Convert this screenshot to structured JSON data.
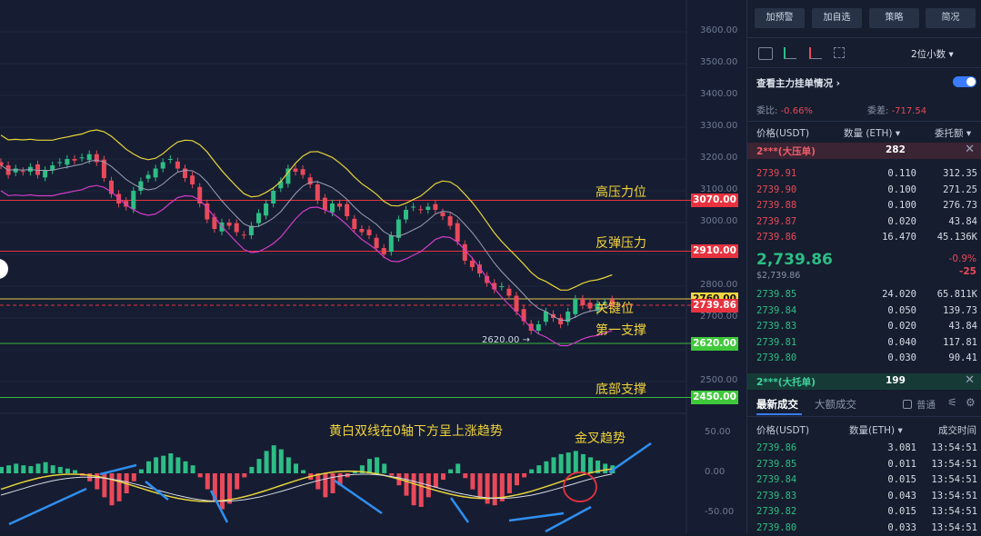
{
  "chart": {
    "price_ticks": [
      "3600.00",
      "3500.00",
      "3400.00",
      "3300.00",
      "3200.00",
      "3100.00",
      "3000.00",
      "2900.00",
      "2800.00",
      "2700.00",
      "2600.00",
      "2500.00"
    ],
    "macd_ticks": [
      "50.00",
      "0.00",
      "-50.00"
    ],
    "levels": [
      {
        "price": "3070.00",
        "label": "高压力位",
        "color": "#e8323f",
        "line": "#e8323f"
      },
      {
        "price": "2910.00",
        "label": "反弹压力",
        "color": "#e8323f",
        "line": "#e8323f"
      },
      {
        "price": "2760.00",
        "label": "关键位",
        "color": "#f0d640",
        "line": "#e4c84a"
      },
      {
        "price": "2739.86",
        "label": "",
        "color": "#e8323f",
        "line": "#e8323f"
      },
      {
        "price": "2620.00",
        "label": "第一支撑",
        "color": "#3fc93a",
        "line": "#39b83c"
      },
      {
        "price": "2450.00",
        "label": "底部支撑",
        "color": "#3fc93a",
        "line": "#39b83c"
      }
    ],
    "low_marker": "2620.00",
    "macd_note": "黄白双线在0轴下方呈上涨趋势",
    "cross_note": "金叉趋势"
  },
  "panel": {
    "buttons": [
      "加预警",
      "加自选",
      "策略",
      "简况"
    ],
    "decimals": "2位小数",
    "main_orders_title": "查看主力挂单情况",
    "ratio_label": "委比:",
    "ratio_value": "-0.66%",
    "diff_label": "委差:",
    "diff_value": "-717.54",
    "book_headers": [
      "价格(USDT)",
      "数量 (ETH)",
      "委托额"
    ],
    "big_sell": {
      "name": "2***(大压单)",
      "value": "282"
    },
    "asks": [
      [
        "2739.91",
        "0.110",
        "312.35"
      ],
      [
        "2739.90",
        "0.100",
        "271.25"
      ],
      [
        "2739.88",
        "0.100",
        "276.73"
      ],
      [
        "2739.87",
        "0.020",
        "43.84"
      ],
      [
        "2739.86",
        "16.470",
        "45.136K"
      ]
    ],
    "last_price": "2,739.86",
    "last_price_sub": "$2,739.86",
    "change_pct": "-0.9%",
    "change_abs": "-25",
    "bids": [
      [
        "2739.85",
        "24.020",
        "65.811K"
      ],
      [
        "2739.84",
        "0.050",
        "139.73"
      ],
      [
        "2739.83",
        "0.020",
        "43.84"
      ],
      [
        "2739.81",
        "0.040",
        "117.81"
      ],
      [
        "2739.80",
        "0.030",
        "90.41"
      ]
    ],
    "big_buy": {
      "name": "2***(大托单)",
      "value": "199"
    },
    "trade_tabs": [
      "最新成交",
      "大额成交"
    ],
    "normal_label": "普通",
    "trade_headers": [
      "价格(USDT)",
      "数量(ETH)",
      "成交时间"
    ],
    "trades": [
      [
        "2739.86",
        "3.081",
        "13:54:51"
      ],
      [
        "2739.85",
        "0.011",
        "13:54:51"
      ],
      [
        "2739.84",
        "0.015",
        "13:54:51"
      ],
      [
        "2739.83",
        "0.043",
        "13:54:51"
      ],
      [
        "2739.82",
        "0.015",
        "13:54:51"
      ],
      [
        "2739.80",
        "0.033",
        "13:54:51"
      ]
    ]
  }
}
